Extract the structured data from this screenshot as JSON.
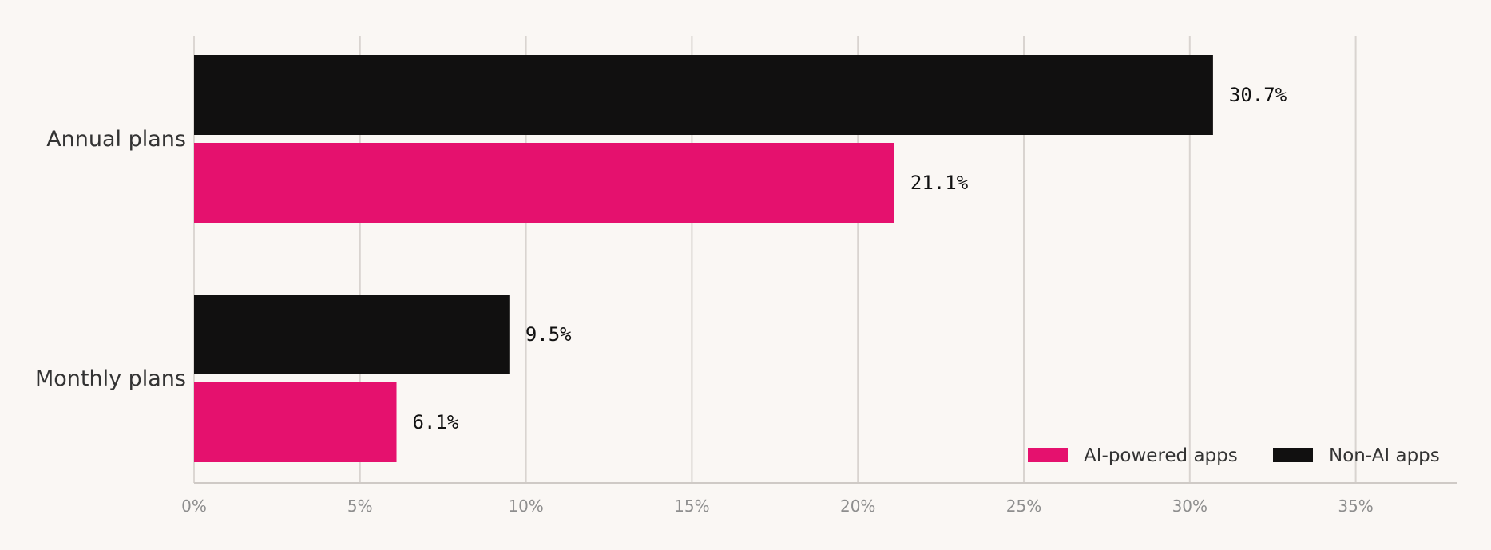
{
  "chart_data": {
    "type": "bar",
    "orientation": "horizontal",
    "categories": [
      "Annual plans",
      "Monthly plans"
    ],
    "series": [
      {
        "name": "Non-AI apps",
        "color": "#111010",
        "values": [
          30.7,
          9.5
        ],
        "labels": [
          "30.7%",
          "9.5%"
        ]
      },
      {
        "name": "AI-powered apps",
        "color": "#e5116e",
        "values": [
          21.1,
          6.1
        ],
        "labels": [
          "21.1%",
          "6.1%"
        ]
      }
    ],
    "xlim": [
      0,
      38
    ],
    "xticks": [
      0,
      5,
      10,
      15,
      20,
      25,
      30,
      35
    ],
    "xtick_labels": [
      "0%",
      "5%",
      "10%",
      "15%",
      "20%",
      "25%",
      "30%",
      "35%"
    ],
    "grid": true,
    "legend": {
      "placement": "bottom-right",
      "entries": [
        {
          "name": "AI-powered apps",
          "color": "#e5116e"
        },
        {
          "name": "Non-AI apps",
          "color": "#111010"
        }
      ]
    },
    "title": "",
    "xlabel": "",
    "ylabel": ""
  }
}
